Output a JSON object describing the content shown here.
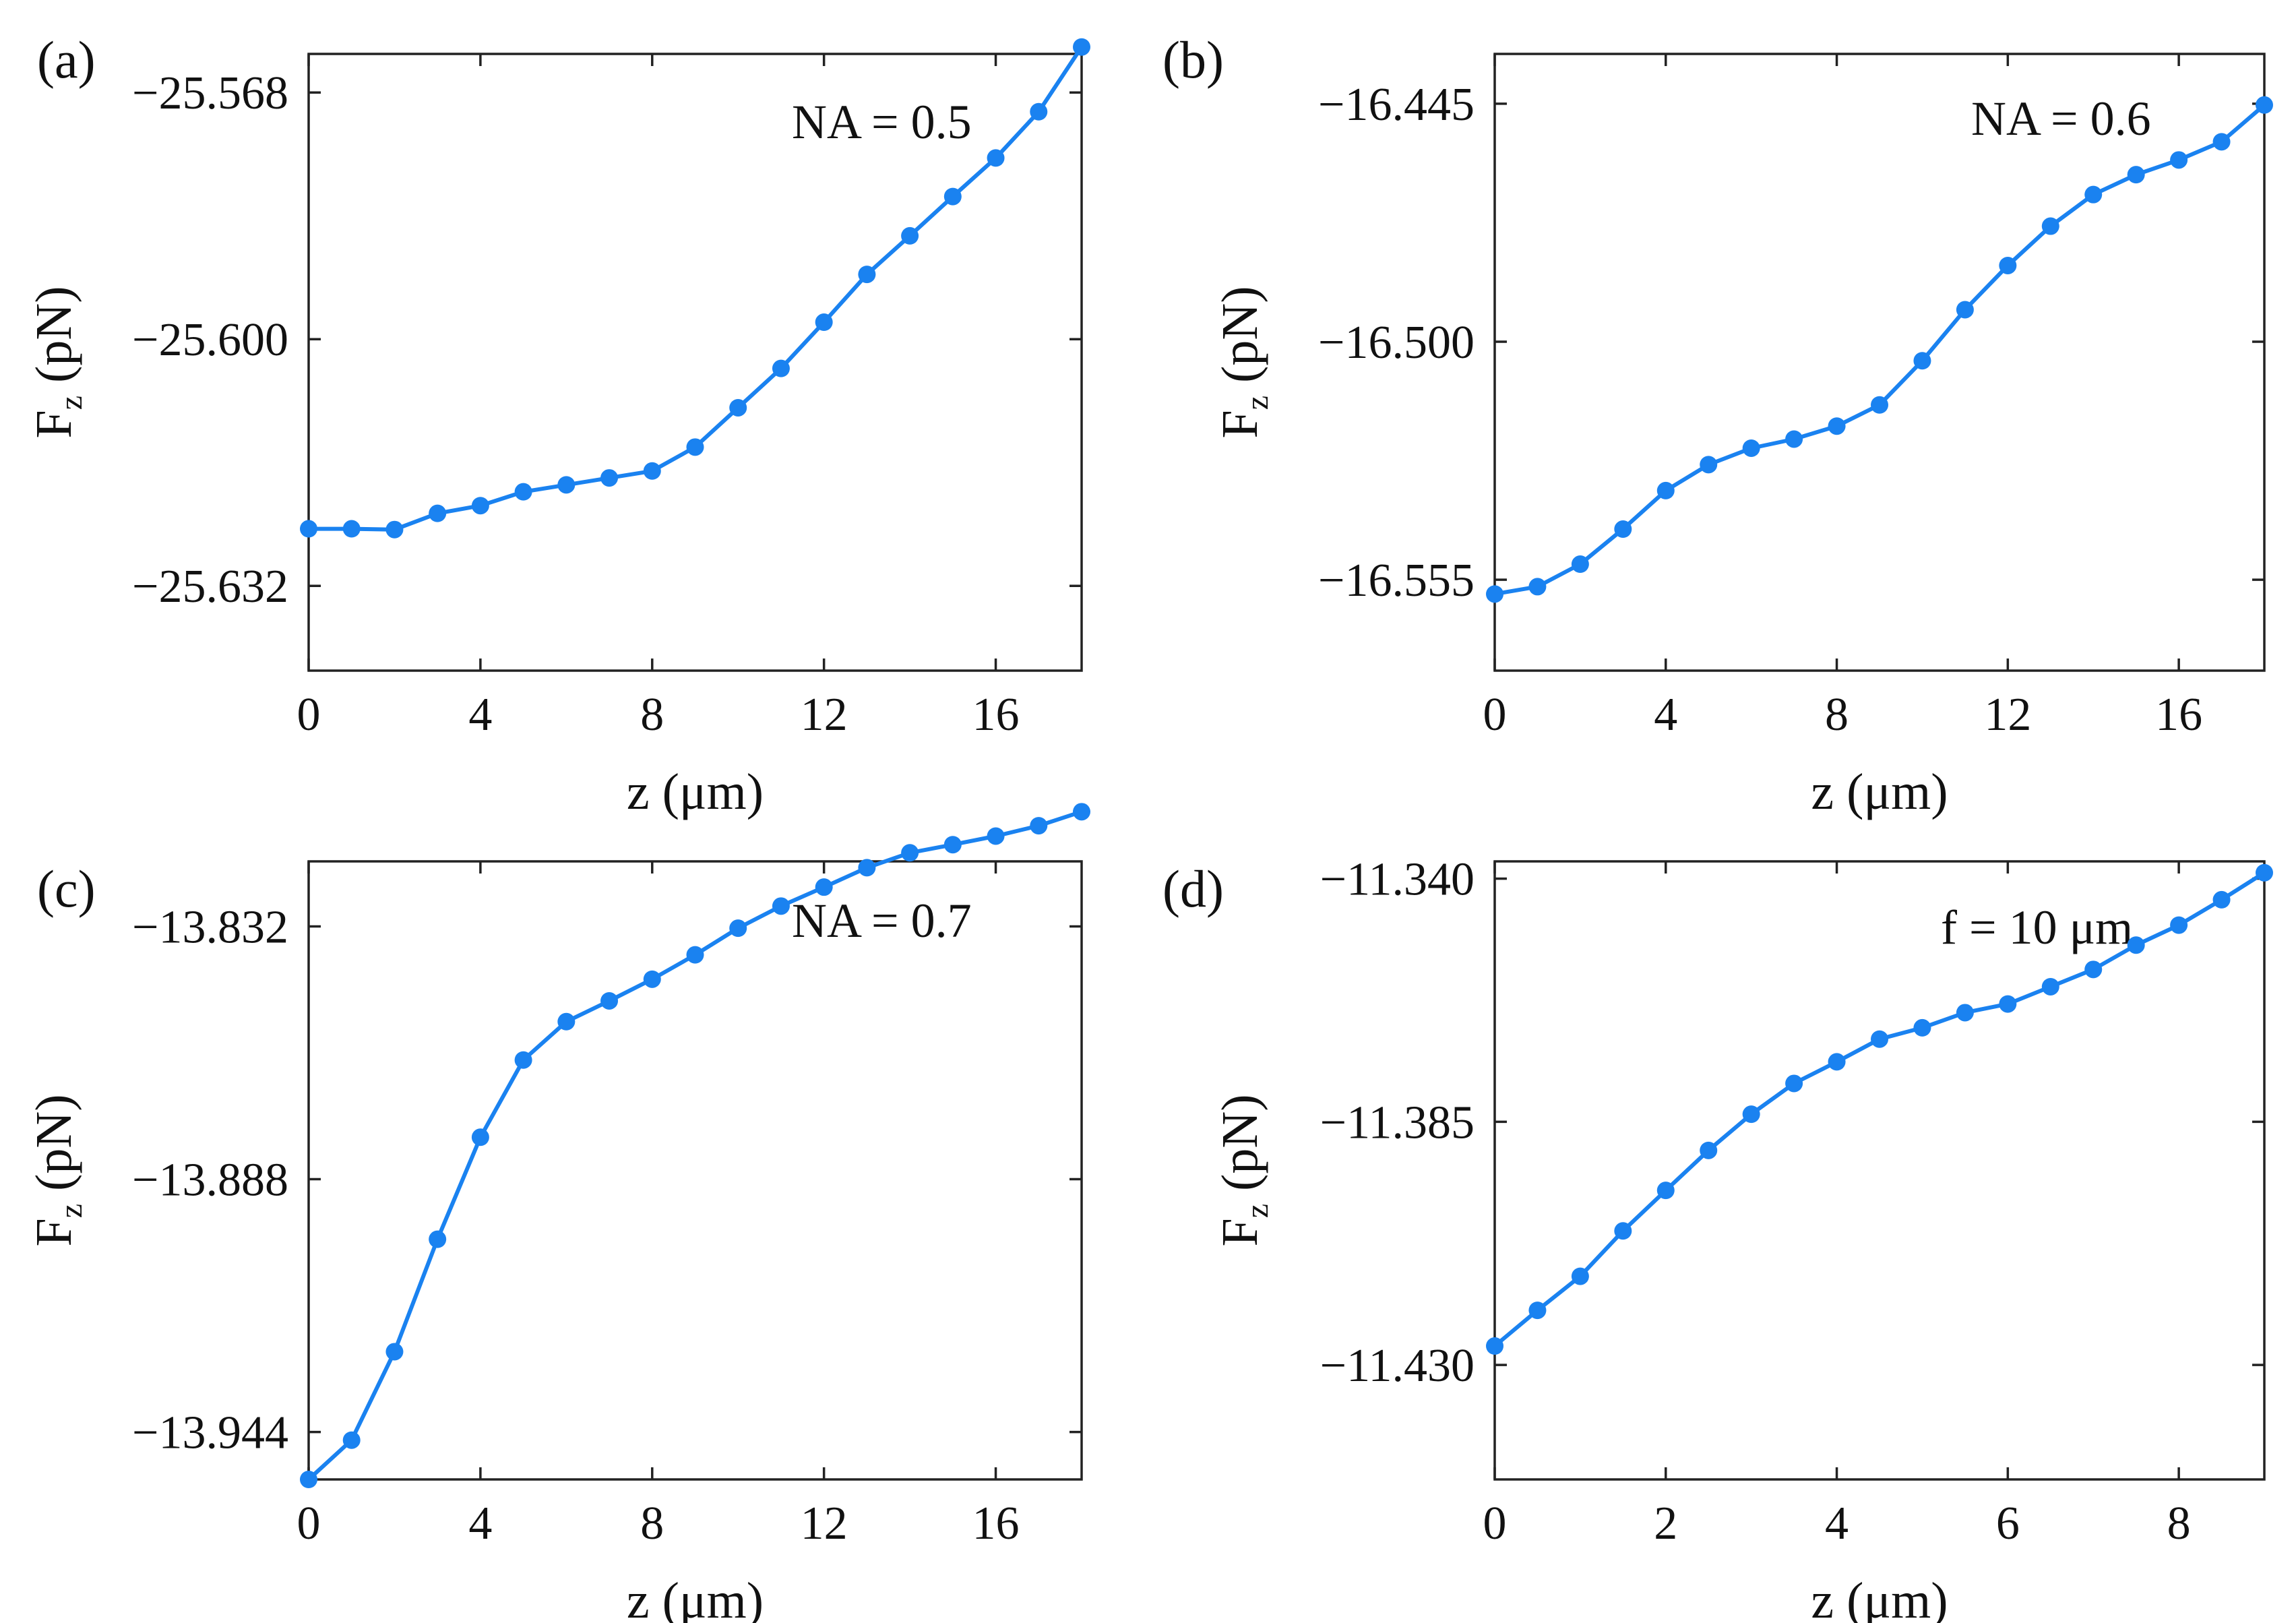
{
  "figure": {
    "colors": {
      "series": "#1a82f0",
      "axis": "#222222",
      "text": "#111111"
    }
  },
  "chart_data": [
    {
      "type": "line",
      "panel_label": "(a)",
      "annotation": "NA = 0.5",
      "xlabel": "z (μm)",
      "ylabel": "F",
      "ylabel_sub": "z",
      "ylabel_unit": " (pN)",
      "xlim": [
        0,
        18
      ],
      "ylim": [
        -25.643,
        -25.563
      ],
      "xticks": [
        0,
        4,
        8,
        12,
        16
      ],
      "xtick_labels": [
        "0",
        "4",
        "8",
        "12",
        "16"
      ],
      "yticks": [
        -25.632,
        -25.6,
        -25.568
      ],
      "ytick_labels": [
        "−25.632",
        "−25.600",
        "−25.568"
      ],
      "x": [
        0,
        1,
        2,
        3,
        4,
        5,
        6,
        7,
        8,
        9,
        10,
        11,
        12,
        13,
        14,
        15,
        16,
        17,
        18
      ],
      "y": [
        -25.6246,
        -25.6246,
        -25.6247,
        -25.6226,
        -25.6216,
        -25.6198,
        -25.6189,
        -25.618,
        -25.6171,
        -25.614,
        -25.6089,
        -25.6038,
        -25.5978,
        -25.5916,
        -25.5866,
        -25.5815,
        -25.5765,
        -25.5705,
        -25.5621
      ]
    },
    {
      "type": "line",
      "panel_label": "(b)",
      "annotation": "NA = 0.6",
      "xlabel": "z (μm)",
      "ylabel": "F",
      "ylabel_sub": "z",
      "ylabel_unit": " (pN)",
      "xlim": [
        0,
        18
      ],
      "ylim": [
        -16.576,
        -16.4335
      ],
      "xticks": [
        0,
        4,
        8,
        12,
        16
      ],
      "xtick_labels": [
        "0",
        "4",
        "8",
        "12",
        "16"
      ],
      "yticks": [
        -16.555,
        -16.5,
        -16.445
      ],
      "ytick_labels": [
        "−16.555",
        "−16.500",
        "−16.445"
      ],
      "x": [
        0,
        1,
        2,
        3,
        4,
        5,
        6,
        7,
        8,
        9,
        10,
        11,
        12,
        13,
        14,
        15,
        16,
        17,
        18
      ],
      "y": [
        -16.5583,
        -16.5566,
        -16.5514,
        -16.5433,
        -16.5344,
        -16.5284,
        -16.5246,
        -16.5225,
        -16.5195,
        -16.5146,
        -16.5044,
        -16.4926,
        -16.4824,
        -16.4733,
        -16.466,
        -16.4614,
        -16.458,
        -16.4538,
        -16.4453
      ]
    },
    {
      "type": "line",
      "panel_label": "(c)",
      "annotation": "NA = 0.7",
      "xlabel": "z (μm)",
      "ylabel": "F",
      "ylabel_sub": "z",
      "ylabel_unit": " (pN)",
      "xlim": [
        0,
        18
      ],
      "ylim": [
        -13.9545,
        -13.8176
      ],
      "xticks": [
        0,
        4,
        8,
        12,
        16
      ],
      "xtick_labels": [
        "0",
        "4",
        "8",
        "12",
        "16"
      ],
      "yticks": [
        -13.944,
        -13.888,
        -13.832
      ],
      "ytick_labels": [
        "−13.944",
        "−13.888",
        "−13.832"
      ],
      "x": [
        0,
        1,
        2,
        3,
        4,
        5,
        6,
        7,
        8,
        9,
        10,
        11,
        12,
        13,
        14,
        15,
        16,
        17,
        18
      ],
      "y": [
        -13.9545,
        -13.9458,
        -13.9262,
        -13.9013,
        -13.8787,
        -13.8616,
        -13.8531,
        -13.8485,
        -13.8437,
        -13.8383,
        -13.8324,
        -13.8275,
        -13.8233,
        -13.819,
        -13.8157,
        -13.8139,
        -13.812,
        -13.8097,
        -13.8066
      ]
    },
    {
      "type": "line",
      "panel_label": "(d)",
      "annotation": "f = 10 μm",
      "xlabel": "z (μm)",
      "ylabel": "F",
      "ylabel_sub": "z",
      "ylabel_unit": " (pN)",
      "xlim": [
        0,
        9
      ],
      "ylim": [
        -11.4512,
        -11.3368
      ],
      "xticks": [
        0,
        2,
        4,
        6,
        8
      ],
      "xtick_labels": [
        "0",
        "2",
        "4",
        "6",
        "8"
      ],
      "yticks": [
        -11.43,
        -11.385,
        -11.34
      ],
      "ytick_labels": [
        "−11.430",
        "−11.385",
        "−11.340"
      ],
      "x": [
        0,
        0.5,
        1,
        1.5,
        2,
        2.5,
        3,
        3.5,
        4,
        4.5,
        5,
        5.5,
        6,
        6.5,
        7,
        7.5,
        8,
        8.5,
        9
      ],
      "y": [
        -11.4265,
        -11.4199,
        -11.4136,
        -11.4052,
        -11.3977,
        -11.3903,
        -11.3836,
        -11.3779,
        -11.3739,
        -11.3697,
        -11.3676,
        -11.3648,
        -11.3632,
        -11.36,
        -11.3568,
        -11.3523,
        -11.3486,
        -11.3439,
        -11.3389
      ]
    }
  ]
}
